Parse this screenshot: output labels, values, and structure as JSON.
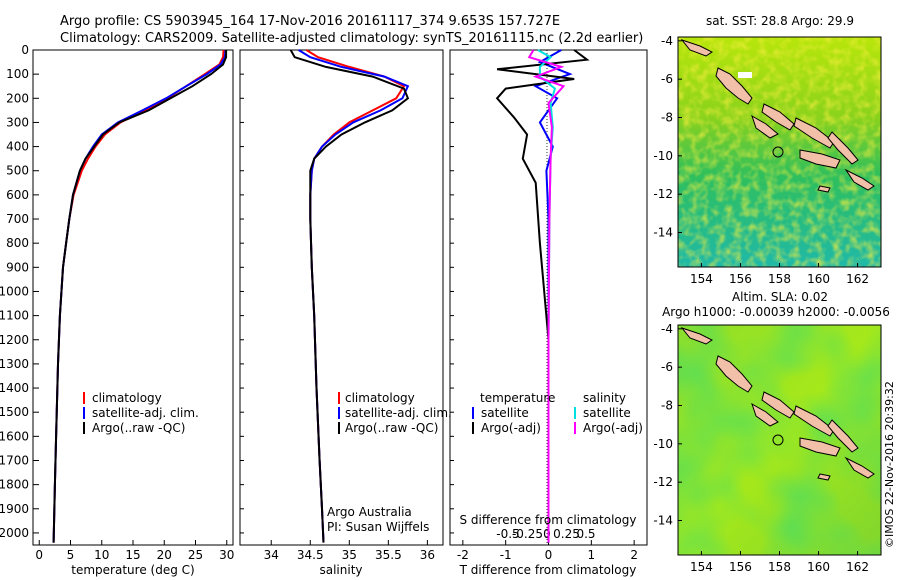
{
  "figure": {
    "title_line1": "Argo profile: CS 5903945_164 17-Nov-2016 20161117_374 9.653S 157.727E",
    "title_line2": "Climatology: CARS2009. Satellite-adjusted climatology: synTS_20161115.nc (2.2d earlier)",
    "credit": "Argo Australia",
    "pi": "PI: Susan Wijffels",
    "stamp": "©IMOS 22-Nov-2016 20:39:32"
  },
  "colors": {
    "climatology": "#ff0000",
    "satellite": "#0000ff",
    "argo": "#000000",
    "sal_satellite": "#00e0e0",
    "sal_argo": "#ff00ff",
    "land": "#f2c0a8"
  },
  "chart_data": [
    {
      "id": "temperature",
      "type": "line",
      "xlabel": "temperature (deg C)",
      "ylabel": "",
      "xlim": [
        -1,
        31
      ],
      "ylim": [
        2050,
        0
      ],
      "xticks": [
        0,
        5,
        10,
        15,
        20,
        25,
        30
      ],
      "yticks": [
        0,
        100,
        200,
        300,
        400,
        500,
        600,
        700,
        800,
        900,
        1000,
        1100,
        1200,
        1300,
        1400,
        1500,
        1600,
        1700,
        1800,
        1900,
        2000
      ],
      "legend": [
        "climatology",
        "satellite-adj. clim.",
        "Argo(..raw -QC)"
      ],
      "series": [
        {
          "name": "climatology",
          "color": "#ff0000",
          "x": [
            29.5,
            29.4,
            28.8,
            26.5,
            23.5,
            20.5,
            17.0,
            13.0,
            10.5,
            9.0,
            7.8,
            6.8,
            5.5,
            4.8,
            4.3,
            3.8,
            3.3,
            3.0,
            2.7,
            2.5,
            2.3
          ],
          "y": [
            0,
            30,
            60,
            100,
            150,
            200,
            250,
            300,
            350,
            400,
            450,
            500,
            600,
            700,
            800,
            900,
            1100,
            1300,
            1600,
            1800,
            2040
          ]
        },
        {
          "name": "satellite-adj. clim.",
          "color": "#0000ff",
          "x": [
            29.8,
            29.7,
            29.0,
            26.8,
            23.5,
            20.3,
            16.5,
            12.6,
            10.0,
            8.6,
            7.4,
            6.5,
            5.4,
            4.8,
            4.3,
            3.8,
            3.3,
            3.0,
            2.7,
            2.5,
            2.3
          ],
          "y": [
            0,
            30,
            60,
            100,
            150,
            200,
            250,
            300,
            350,
            400,
            450,
            500,
            600,
            700,
            800,
            900,
            1100,
            1300,
            1600,
            1800,
            2040
          ]
        },
        {
          "name": "Argo(..raw -QC)",
          "color": "#000000",
          "x": [
            29.9,
            29.9,
            29.4,
            27.5,
            24.5,
            21.0,
            17.5,
            12.8,
            10.2,
            8.8,
            7.4,
            6.5,
            5.4,
            4.8,
            4.3,
            3.8,
            3.3,
            3.0,
            2.7,
            2.5,
            2.3
          ],
          "y": [
            0,
            30,
            60,
            100,
            150,
            200,
            250,
            300,
            350,
            400,
            450,
            500,
            600,
            700,
            800,
            900,
            1100,
            1300,
            1600,
            1800,
            2040
          ]
        }
      ]
    },
    {
      "id": "salinity",
      "type": "line",
      "xlabel": "salinity",
      "xlim": [
        33.6,
        36.2
      ],
      "ylim": [
        2050,
        0
      ],
      "xticks": [
        34,
        34.5,
        35,
        35.5,
        36
      ],
      "xticklabels": [
        "34",
        "34.5",
        "35",
        "35.5",
        "36"
      ],
      "legend": [
        "climatology",
        "satellite-adj. clim.",
        "Argo(..raw -QC)"
      ],
      "series": [
        {
          "name": "climatology",
          "color": "#ff0000",
          "x": [
            34.45,
            34.6,
            35.0,
            35.45,
            35.7,
            35.6,
            35.3,
            35.0,
            34.8,
            34.65,
            34.55,
            34.52,
            34.5,
            34.5,
            34.52,
            34.55,
            34.58,
            34.62,
            34.65,
            34.67
          ],
          "y": [
            0,
            30,
            70,
            110,
            150,
            200,
            250,
            300,
            350,
            400,
            450,
            500,
            600,
            700,
            900,
            1100,
            1400,
            1700,
            1900,
            2040
          ]
        },
        {
          "name": "satellite-adj. clim.",
          "color": "#0000ff",
          "x": [
            34.35,
            34.5,
            34.9,
            35.45,
            35.75,
            35.68,
            35.4,
            35.05,
            34.82,
            34.65,
            34.55,
            34.52,
            34.5,
            34.5,
            34.52,
            34.55,
            34.58,
            34.62,
            34.65,
            34.67
          ],
          "y": [
            0,
            30,
            70,
            110,
            150,
            200,
            250,
            300,
            350,
            400,
            450,
            500,
            600,
            700,
            900,
            1100,
            1400,
            1700,
            1900,
            2040
          ]
        },
        {
          "name": "Argo(..raw -QC)",
          "color": "#000000",
          "x": [
            34.25,
            34.3,
            34.7,
            35.3,
            35.7,
            35.75,
            35.55,
            35.2,
            34.9,
            34.7,
            34.55,
            34.5,
            34.5,
            34.5,
            34.52,
            34.55,
            34.58,
            34.62,
            34.65,
            34.67
          ],
          "y": [
            0,
            30,
            70,
            110,
            160,
            200,
            250,
            300,
            350,
            400,
            450,
            500,
            600,
            700,
            900,
            1100,
            1400,
            1700,
            1900,
            2040
          ]
        }
      ]
    },
    {
      "id": "difference",
      "type": "line",
      "xlabel": "T difference from climatology",
      "top_label": "S difference from climatology",
      "xlim": [
        -2.3,
        2.3
      ],
      "ylim": [
        2050,
        0
      ],
      "xticks": [
        -2,
        -1,
        0,
        1,
        2
      ],
      "s_ticks": [
        -0.5,
        -0.25,
        0,
        0.25,
        0.5
      ],
      "s_ticklabels": [
        "-0.5",
        "-0.25",
        "0",
        "0.25",
        "0.5"
      ],
      "legend_titles": [
        "temperature",
        "salinity"
      ],
      "legend": [
        "satellite",
        "Argo(-adj)",
        "satellite",
        "Argo(-adj)"
      ],
      "series": [
        {
          "name": "temperature satellite",
          "color": "#0000ff",
          "x": [
            0.3,
            -0.2,
            0.5,
            -0.3,
            0.2,
            -0.2,
            0.1,
            -0.05,
            0.0,
            0.0,
            0.0,
            0.0
          ],
          "y": [
            0,
            50,
            100,
            150,
            200,
            300,
            400,
            500,
            700,
            1000,
            1500,
            2040
          ]
        },
        {
          "name": "temperature Argo(-adj)",
          "color": "#000000",
          "x": [
            0.6,
            0.9,
            -1.2,
            0.6,
            -1.0,
            -1.2,
            -0.8,
            -0.5,
            -0.6,
            -0.3,
            -0.2,
            0.0,
            0.0
          ],
          "y": [
            0,
            40,
            80,
            120,
            160,
            200,
            280,
            350,
            450,
            550,
            800,
            1200,
            2040
          ]
        },
        {
          "name": "salinity satellite",
          "color": "#00e0e0",
          "x": [
            -0.25,
            0.05,
            -0.2,
            -0.2,
            0.15,
            0.05,
            0.1,
            0.05,
            0.02,
            0.0,
            0.0
          ],
          "y": [
            0,
            30,
            70,
            110,
            160,
            220,
            320,
            450,
            700,
            1200,
            2040
          ]
        },
        {
          "name": "salinity Argo(-adj)",
          "color": "#ff00ff",
          "x": [
            -0.35,
            -0.45,
            0.3,
            -0.3,
            0.35,
            0.0,
            0.08,
            0.05,
            0.02,
            0.0,
            0.0
          ],
          "y": [
            0,
            30,
            70,
            110,
            150,
            220,
            320,
            450,
            700,
            1200,
            2040
          ]
        }
      ]
    },
    {
      "id": "sst_map",
      "type": "heatmap",
      "title": "sat. SST: 28.8 Argo: 29.9",
      "xlim": [
        152.8,
        163.2
      ],
      "ylim": [
        -15.8,
        -3.8
      ],
      "xticks": [
        154,
        156,
        158,
        160,
        162
      ],
      "yticks": [
        -4,
        -6,
        -8,
        -10,
        -12,
        -14
      ],
      "argo_position": [
        157.727,
        -9.653
      ]
    },
    {
      "id": "sla_map",
      "type": "heatmap",
      "title": "Altim. SLA: 0.02",
      "subtitle": "Argo h1000: -0.00039 h2000: -0.0056",
      "xlim": [
        152.8,
        163.2
      ],
      "ylim": [
        -15.8,
        -3.8
      ],
      "xticks": [
        154,
        156,
        158,
        160,
        162
      ],
      "yticks": [
        -4,
        -6,
        -8,
        -10,
        -12,
        -14
      ],
      "argo_position": [
        157.727,
        -9.653
      ]
    }
  ]
}
